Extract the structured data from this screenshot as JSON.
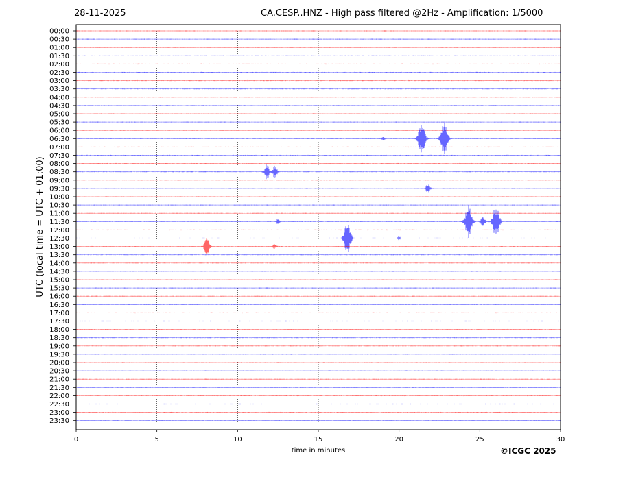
{
  "header": {
    "date": "28-11-2025",
    "title": "CA.CESP..HNZ - High pass filtered @2Hz - Amplification: 1/5000"
  },
  "footer": {
    "credit": "©ICGC 2025"
  },
  "chart_data": {
    "type": "line",
    "title": "CA.CESP..HNZ - High pass filtered @2Hz - Amplification: 1/5000",
    "date": "28-11-2025",
    "xlabel": "time in minutes",
    "ylabel": "UTC (local time = UTC + 01:00)",
    "xlim": [
      0,
      30
    ],
    "xticks": [
      0,
      5,
      10,
      15,
      20,
      25,
      30
    ],
    "grid": "vertical dotted at x ticks",
    "row_labels": [
      "00:00",
      "00:30",
      "01:00",
      "01:30",
      "02:00",
      "02:30",
      "03:00",
      "03:30",
      "04:00",
      "04:30",
      "05:00",
      "05:30",
      "06:00",
      "06:30",
      "07:00",
      "07:30",
      "08:00",
      "08:30",
      "09:00",
      "09:30",
      "10:00",
      "10:30",
      "11:00",
      "11:30",
      "12:00",
      "12:30",
      "13:00",
      "13:30",
      "14:00",
      "14:30",
      "15:00",
      "15:30",
      "16:00",
      "16:30",
      "17:00",
      "17:30",
      "18:00",
      "18:30",
      "19:00",
      "19:30",
      "20:00",
      "20:30",
      "21:00",
      "21:30",
      "22:00",
      "22:30",
      "23:00",
      "23:30"
    ],
    "trace_colors": [
      "#ff0000",
      "#0000ff"
    ],
    "events": [
      {
        "row": "06:30",
        "minute": 19.0,
        "amplitude": 0.1
      },
      {
        "row": "06:30",
        "minute": 21.4,
        "amplitude": 1.0
      },
      {
        "row": "06:30",
        "minute": 22.8,
        "amplitude": 1.0
      },
      {
        "row": "08:30",
        "minute": 11.8,
        "amplitude": 0.5
      },
      {
        "row": "08:30",
        "minute": 12.3,
        "amplitude": 0.4
      },
      {
        "row": "09:30",
        "minute": 21.8,
        "amplitude": 0.3
      },
      {
        "row": "11:30",
        "minute": 12.5,
        "amplitude": 0.15
      },
      {
        "row": "11:30",
        "minute": 24.3,
        "amplitude": 1.0
      },
      {
        "row": "11:30",
        "minute": 25.2,
        "amplitude": 0.35
      },
      {
        "row": "11:30",
        "minute": 26.0,
        "amplitude": 1.0
      },
      {
        "row": "12:30",
        "minute": 16.8,
        "amplitude": 1.0
      },
      {
        "row": "12:30",
        "minute": 20.0,
        "amplitude": 0.1
      },
      {
        "row": "13:00",
        "minute": 8.1,
        "amplitude": 0.6
      },
      {
        "row": "13:00",
        "minute": 12.3,
        "amplitude": 0.15
      }
    ]
  }
}
